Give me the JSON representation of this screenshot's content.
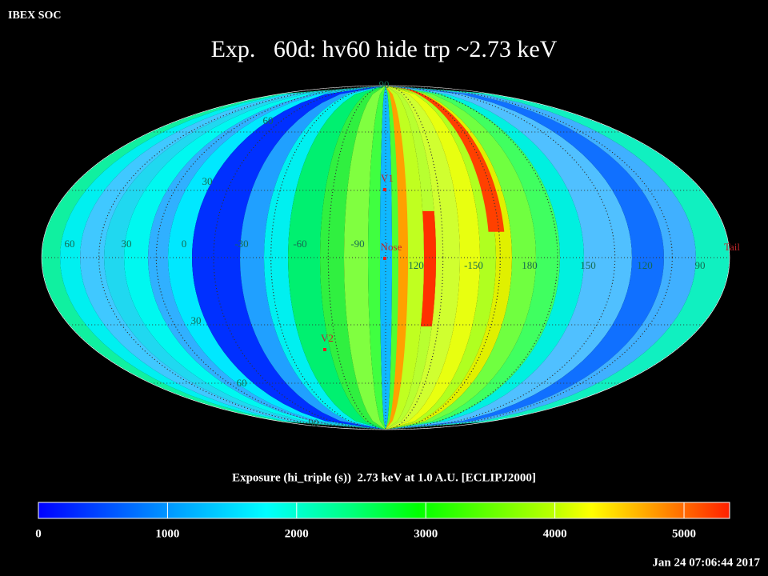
{
  "header": {
    "org": "IBEX SOC",
    "title": "Exp.   60d: hv60 hide trp ~2.73 keV",
    "timestamp": "Jan 24 07:06:44 2017"
  },
  "map": {
    "lon_labels": [
      "60",
      "30",
      "0",
      "-30",
      "-60",
      "-90",
      "120",
      "-150",
      "180",
      "150",
      "120",
      "90"
    ],
    "lat_labels": [
      "90",
      "60",
      "30",
      "30",
      "60",
      "90"
    ],
    "markers": [
      {
        "label": "V1"
      },
      {
        "label": "Nose"
      },
      {
        "label": "V2"
      }
    ],
    "tail": "Tail"
  },
  "colorbar": {
    "label": "Exposure (hi_triple (s))  2.73 keV at 1.0 A.U. [ECLIPJ2000]",
    "lim": [
      0,
      5353
    ],
    "ticks": [
      0,
      1000,
      2000,
      3000,
      4000,
      5000
    ]
  }
}
